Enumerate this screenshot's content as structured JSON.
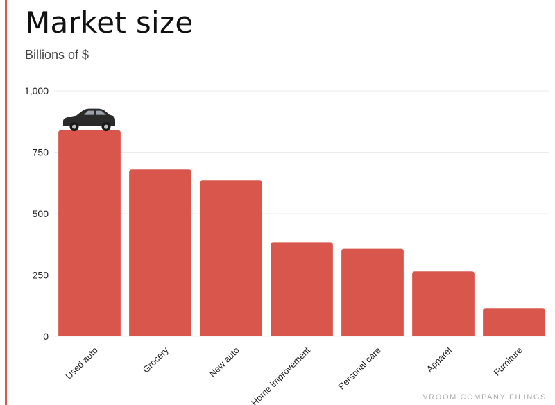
{
  "title": "Market size",
  "subtitle": "Billions of $",
  "source": "VROOM COMPANY FILINGS",
  "colors": {
    "bar": "#d9564d",
    "accent_rule": "#d9564d"
  },
  "icons": {
    "top_bar_marker": "car-icon"
  },
  "chart_data": {
    "type": "bar",
    "title": "Market size",
    "subtitle": "Billions of $",
    "xlabel": "",
    "ylabel": "",
    "categories": [
      "Used auto",
      "Grocery",
      "New auto",
      "Home improvement",
      "Personal care",
      "Apparel",
      "Furniture"
    ],
    "values": [
      840,
      680,
      635,
      383,
      357,
      265,
      115
    ],
    "ylim": [
      0,
      1000
    ],
    "yticks": [
      0,
      250,
      500,
      750,
      1000
    ],
    "ytick_labels": [
      "0",
      "250",
      "500",
      "750",
      "1,000"
    ],
    "grid": true,
    "legend": "none"
  }
}
